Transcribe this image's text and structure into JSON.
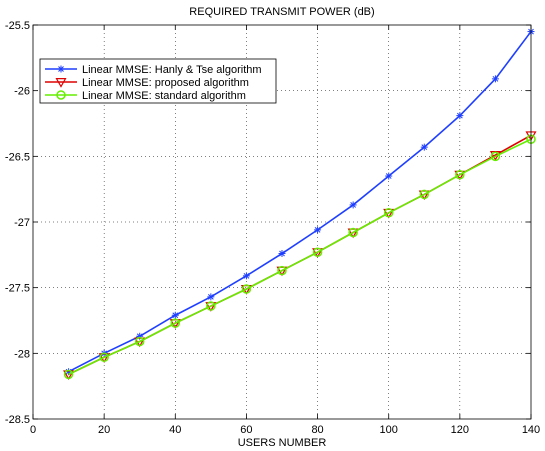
{
  "chart_data": {
    "type": "line",
    "title": "REQUIRED TRANSMIT POWER (dB)",
    "xlabel": "USERS NUMBER",
    "ylabel": "",
    "xlim": [
      0,
      140
    ],
    "ylim": [
      -28.5,
      -25.5
    ],
    "xticks": [
      0,
      20,
      40,
      60,
      80,
      100,
      120,
      140
    ],
    "xtick_labels": [
      "0",
      "20",
      "40",
      "60",
      "80",
      "100",
      "120",
      "140"
    ],
    "yticks": [
      -28.5,
      -28,
      -27.5,
      -27,
      -26.5,
      -26,
      -25.5
    ],
    "ytick_labels": [
      "-28.5",
      "-28",
      "-27.5",
      "-27",
      "-26.5",
      "-26",
      "-25.5"
    ],
    "grid": true,
    "grid_style": "dotted",
    "legend_position": "upper-left",
    "x": [
      10,
      20,
      30,
      40,
      50,
      60,
      70,
      80,
      90,
      100,
      110,
      120,
      130,
      140
    ],
    "series": [
      {
        "name": "Linear MMSE: Hanly & Tse algorithm",
        "color": "#1f3fff",
        "marker": "asterisk",
        "values": [
          -28.14,
          -28.0,
          -27.87,
          -27.71,
          -27.57,
          -27.41,
          -27.24,
          -27.06,
          -26.87,
          -26.65,
          -26.43,
          -26.19,
          -25.91,
          -25.55
        ]
      },
      {
        "name": "Linear MMSE: proposed algorithm",
        "color": "#dd0000",
        "marker": "triangle-down",
        "values": [
          -28.16,
          -28.03,
          -27.91,
          -27.77,
          -27.64,
          -27.51,
          -27.37,
          -27.23,
          -27.08,
          -26.93,
          -26.79,
          -26.64,
          -26.49,
          -26.34
        ]
      },
      {
        "name": "Linear MMSE: standard algorithm",
        "color": "#66ee00",
        "marker": "circle",
        "values": [
          -28.16,
          -28.03,
          -27.91,
          -27.77,
          -27.64,
          -27.51,
          -27.37,
          -27.23,
          -27.08,
          -26.93,
          -26.79,
          -26.64,
          -26.5,
          -26.37
        ]
      }
    ]
  }
}
